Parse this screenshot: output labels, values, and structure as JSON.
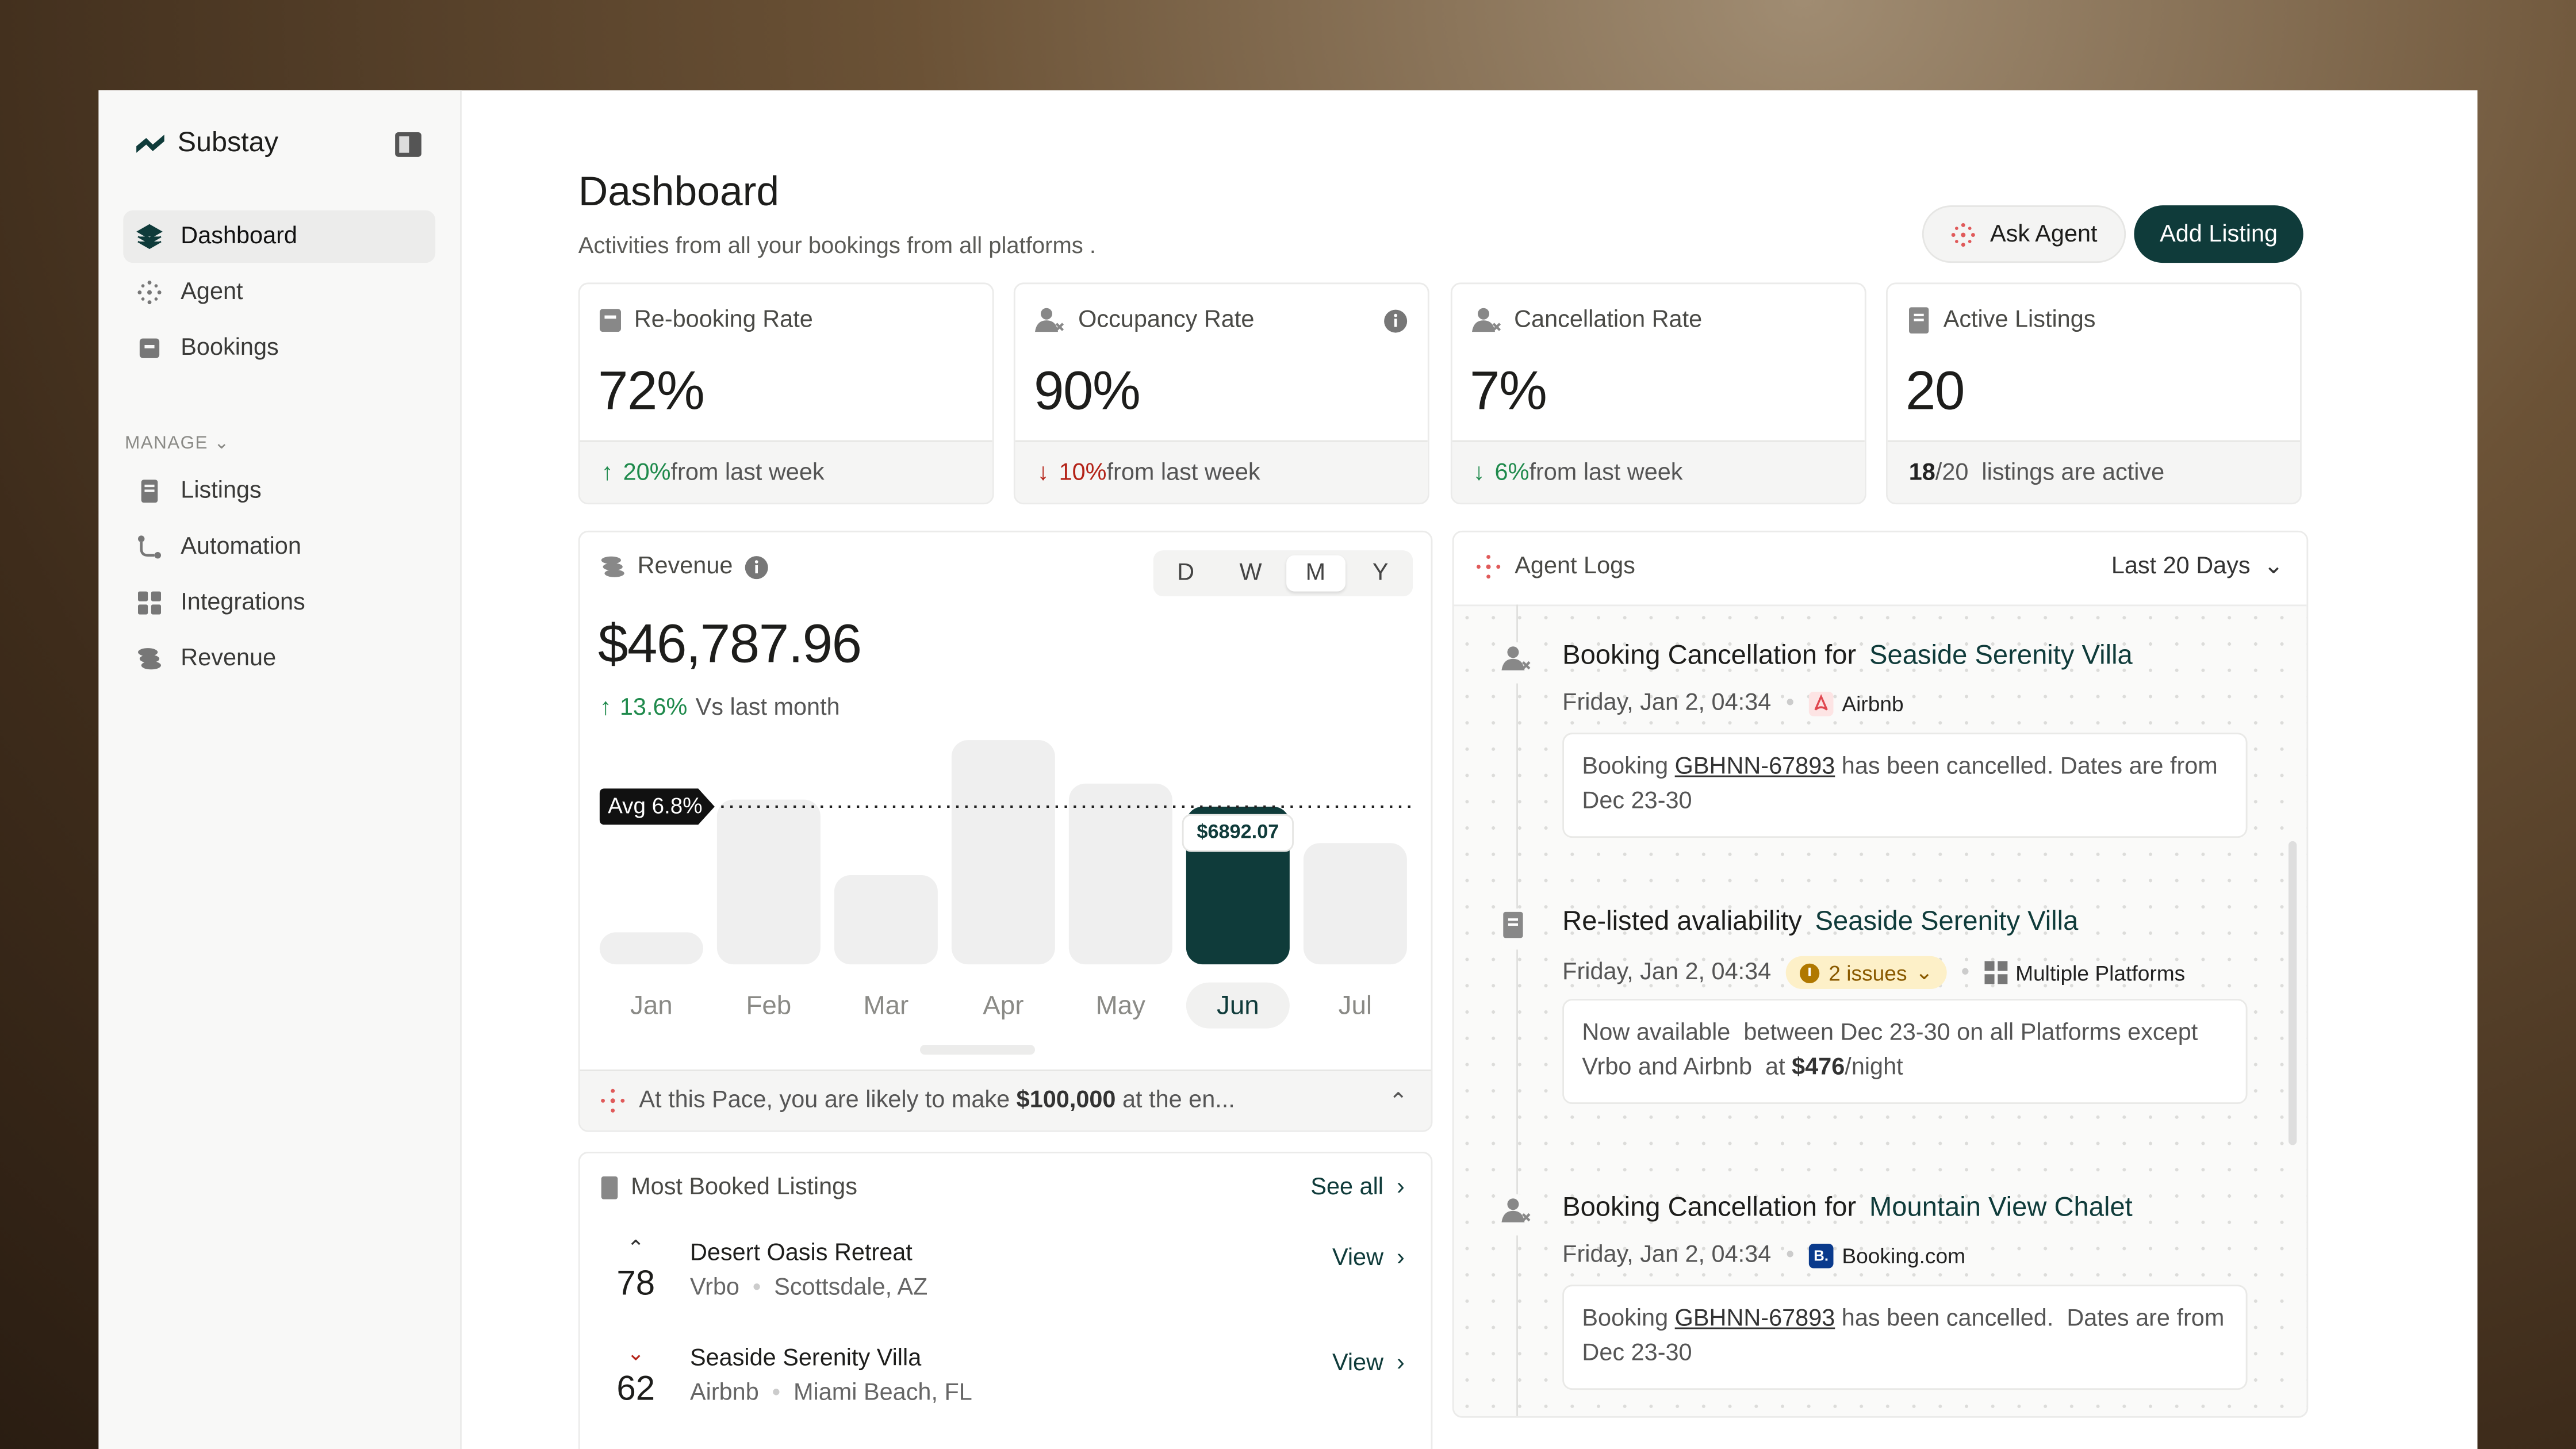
{
  "sidebar": {
    "brand": "Substay",
    "nav": [
      "Dashboard",
      "Agent",
      "Bookings"
    ],
    "section": "MANAGE",
    "manage": [
      "Listings",
      "Automation",
      "Integrations",
      "Revenue"
    ]
  },
  "header": {
    "title": "Dashboard",
    "subtitle": "Activities from all your bookings from all platforms .",
    "ask_button": "Ask Agent",
    "add_button": "Add Listing"
  },
  "stats": [
    {
      "label": "Re-booking Rate",
      "value": "72%",
      "change": "20%",
      "change_text": "from last week",
      "direction": "up"
    },
    {
      "label": "Occupancy Rate",
      "value": "90%",
      "change": "10%",
      "change_text": "from last week",
      "direction": "down"
    },
    {
      "label": "Cancellation Rate",
      "value": "7%",
      "change": "6%",
      "change_text": "from last week",
      "direction": "down"
    },
    {
      "label": "Active Listings",
      "value": "20",
      "change": "18",
      "change_text": "/20  listings are active",
      "direction": "none"
    }
  ],
  "revenue": {
    "title": "Revenue",
    "periods": [
      "D",
      "W",
      "M",
      "Y"
    ],
    "total": "$46,787.96",
    "change": "13.6%",
    "change_text": "Vs last month",
    "footer": [
      "At this Pace, you are likely to make ",
      "$100,000",
      " at the en..."
    ]
  },
  "chart_data": {
    "type": "bar",
    "annotation": "Avg 6.8%",
    "categories": [
      "Jan",
      "Feb",
      "Mar",
      "Apr",
      "May",
      "Jun",
      "Jul"
    ],
    "values": [
      1400,
      7200,
      3900,
      9800,
      7900,
      6892.07,
      5300
    ],
    "value_labels": [
      null,
      null,
      null,
      null,
      null,
      "$6892.07",
      null
    ],
    "color": "#efefef",
    "highlight_color": "#0f3b3a",
    "highlight": 5
  },
  "most_booked": {
    "title": "Most Booked Listings",
    "see_all": "See all",
    "items": [
      {
        "rank": "78",
        "trend": "up",
        "name": "Desert Oasis Retreat",
        "platform": "Vrbo",
        "location": "Scottsdale, AZ",
        "action": "View"
      },
      {
        "rank": "62",
        "trend": "down",
        "name": "Seaside Serenity Villa",
        "platform": "Airbnb",
        "location": "Miami Beach, FL",
        "action": "View"
      }
    ]
  },
  "agent_logs": {
    "title": "Agent Logs",
    "filter": "Last 20 Days",
    "entries": [
      {
        "title": "Booking Cancellation for",
        "target": "Seaside Serenity Villa",
        "time": "Friday, Jan 2, 04:34",
        "platform": "Airbnb",
        "message": [
          "Booking ",
          "GBHNN-67893",
          " has been cancelled. Dates are from Dec 23-30"
        ]
      },
      {
        "title": "Re-listed avaliability",
        "target": "Seaside Serenity Villa",
        "time": "Friday, Jan 2, 04:34",
        "issues": "2 issues",
        "platform": "Multiple Platforms",
        "message": [
          "Now available  between Dec 23-30 on all Platforms except Vrbo and Airbnb  at ",
          "$476",
          "/night"
        ]
      },
      {
        "title": "Booking Cancellation for",
        "target": "Mountain View Chalet",
        "time": "Friday, Jan 2, 04:34",
        "platform": "Booking.com",
        "message": [
          "Booking ",
          "GBHNN-67893",
          " has been cancelled.  Dates are from Dec 23-30"
        ]
      }
    ]
  }
}
